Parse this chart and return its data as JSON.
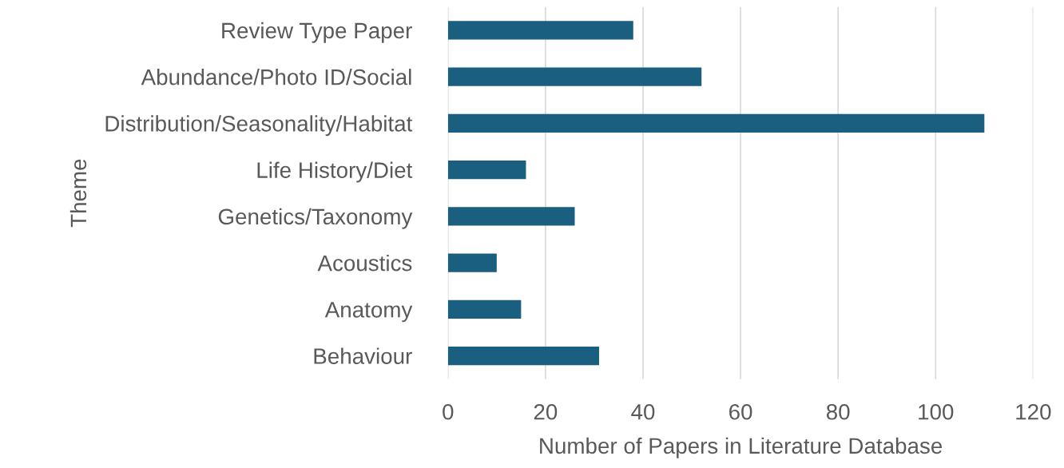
{
  "chart_data": {
    "type": "bar",
    "orientation": "horizontal",
    "xlabel": "Number of Papers in Literature Database",
    "ylabel": "Theme",
    "categories": [
      "Review Type Paper",
      "Abundance/Photo ID/Social",
      "Distribution/Seasonality/Habitat",
      "Life History/Diet",
      "Genetics/Taxonomy",
      "Acoustics",
      "Anatomy",
      "Behaviour"
    ],
    "values": [
      38,
      52,
      110,
      16,
      26,
      10,
      15,
      31
    ],
    "color": "#1a5e80",
    "xlim": [
      0,
      120
    ],
    "xticks": [
      0,
      20,
      40,
      60,
      80,
      100,
      120
    ],
    "grid": "x",
    "legend": false
  }
}
